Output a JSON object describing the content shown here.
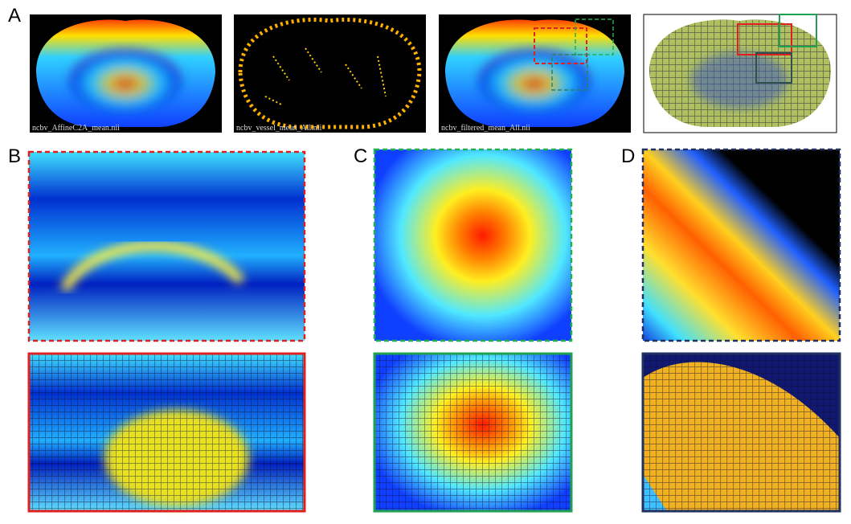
{
  "panel_labels": [
    "A",
    "B",
    "C",
    "D"
  ],
  "image_captions": [
    "ncbv_AffineC2A_mean.nii",
    "ncbv_vessel_mean_All.nii",
    "ncbv_filtered_mean_All.nii"
  ]
}
